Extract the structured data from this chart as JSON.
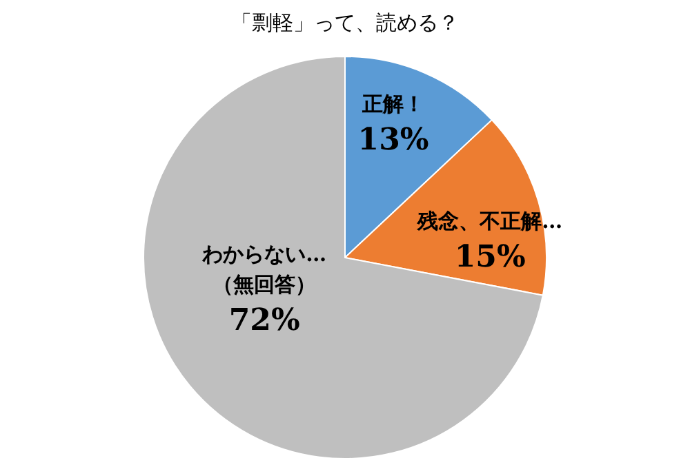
{
  "chart_data": {
    "type": "pie",
    "title": "「剽軽」って、読める？",
    "categories": [
      "正解！",
      "残念、不正解…",
      "わからない…\n（無回答）"
    ],
    "values": [
      13,
      15,
      72
    ],
    "colors": [
      "#5b9bd5",
      "#ed7d31",
      "#bfbfbf"
    ],
    "value_labels": [
      "13%",
      "15%",
      "72%"
    ],
    "legend": false
  }
}
